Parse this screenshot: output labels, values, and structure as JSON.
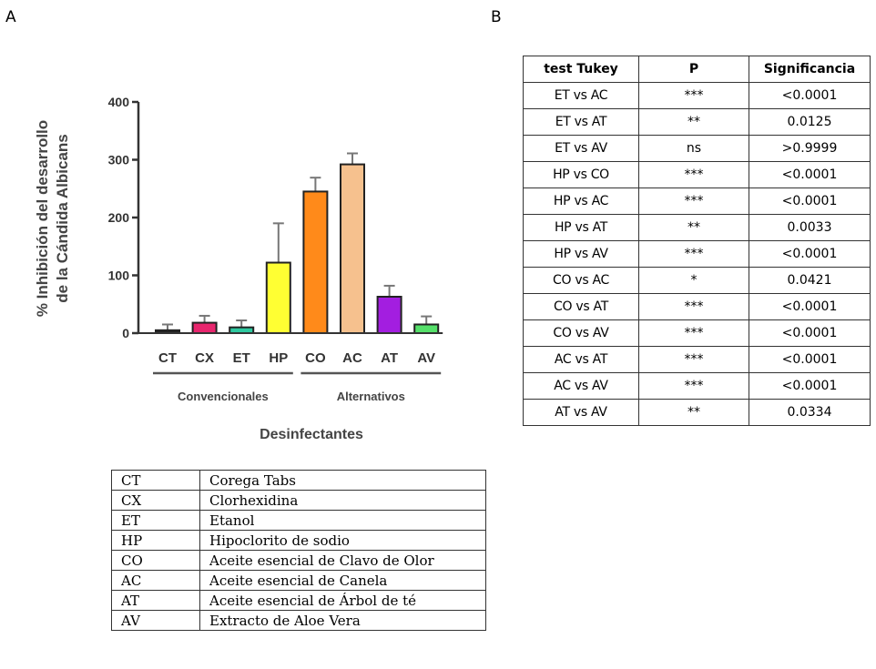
{
  "panels": {
    "a": "A",
    "b": "B"
  },
  "chart_data": {
    "type": "bar",
    "ylabel_lines": [
      "% Inhibición del desarrollo",
      "de la Cándida Albicans"
    ],
    "xlabel": "Desinfectantes",
    "ylim": [
      0,
      400
    ],
    "yticks": [
      "0",
      "100",
      "200",
      "300",
      "400"
    ],
    "categories": [
      "CT",
      "CX",
      "ET",
      "HP",
      "CO",
      "AC",
      "AT",
      "AV"
    ],
    "values": [
      5,
      18,
      10,
      122,
      245,
      292,
      63,
      15
    ],
    "errors": [
      10,
      12,
      12,
      68,
      24,
      19,
      19,
      14
    ],
    "colors": [
      "#222222",
      "#e8266e",
      "#2ec9a0",
      "#ffff33",
      "#ff8a1a",
      "#f6c18e",
      "#a31ee0",
      "#55e06a"
    ],
    "groups": [
      {
        "label": "Convencionales",
        "members": [
          "CT",
          "CX",
          "ET",
          "HP"
        ]
      },
      {
        "label": "Alternativos",
        "members": [
          "CO",
          "AC",
          "AT",
          "AV"
        ]
      }
    ]
  },
  "tukey": {
    "headers": [
      "test Tukey",
      "P",
      "Significancia"
    ],
    "rows": [
      [
        "ET vs AC",
        "***",
        "<0.0001"
      ],
      [
        "ET vs AT",
        "**",
        "0.0125"
      ],
      [
        "ET vs AV",
        "ns",
        ">0.9999"
      ],
      [
        "HP vs CO",
        "***",
        "<0.0001"
      ],
      [
        "HP vs AC",
        "***",
        "<0.0001"
      ],
      [
        "HP vs AT",
        "**",
        "0.0033"
      ],
      [
        "HP vs AV",
        "***",
        "<0.0001"
      ],
      [
        "CO vs AC",
        "*",
        "0.0421"
      ],
      [
        "CO vs AT",
        "***",
        "<0.0001"
      ],
      [
        "CO vs AV",
        "***",
        "<0.0001"
      ],
      [
        "AC vs AT",
        "***",
        "<0.0001"
      ],
      [
        "AC vs AV",
        "***",
        "<0.0001"
      ],
      [
        "AT vs AV",
        "**",
        "0.0334"
      ]
    ]
  },
  "legend_table": {
    "rows": [
      [
        "CT",
        "Corega Tabs"
      ],
      [
        "CX",
        "Clorhexidina"
      ],
      [
        "ET",
        "Etanol"
      ],
      [
        "HP",
        "Hipoclorito de sodio"
      ],
      [
        "CO",
        "Aceite esencial de Clavo de Olor"
      ],
      [
        "AC",
        "Aceite esencial de Canela"
      ],
      [
        "AT",
        "Aceite esencial de Árbol de té"
      ],
      [
        "AV",
        "Extracto de Aloe Vera"
      ]
    ]
  }
}
